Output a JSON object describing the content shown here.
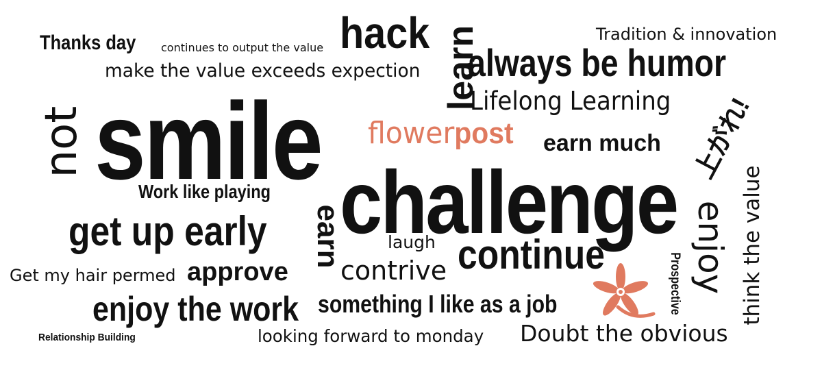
{
  "words": {
    "thanks_day": "Thanks day",
    "continues_output": "continues to output the value",
    "hack": "hack",
    "tradition": "Tradition & innovation",
    "make_value": "make the value exceeds expection",
    "learn": "learn",
    "always_humor": "always be humor",
    "lifelong": "Lifelong Learning",
    "not": "not",
    "smile": "smile",
    "flower": "flower",
    "post": "post",
    "earn_much": "earn much",
    "agare": "上がれ!",
    "work_playing": "Work like playing",
    "challenge": "challenge",
    "earn": "earn",
    "enjoy_vert": "enjoy",
    "think_value": "think the value",
    "get_up": "get up early",
    "laugh": "laugh",
    "prospective": "Prospective",
    "continue": "continue",
    "hair": "Get my hair permed",
    "approve": "approve",
    "contrive": "contrive",
    "enjoy_work": "enjoy the work",
    "something": "something I like as a job",
    "relationship": "Relationship Building",
    "looking": "looking forward to monday",
    "doubt": "Doubt the obvious"
  },
  "colors": {
    "text": "#111111",
    "accent": "#e07a5f",
    "background": "#ffffff"
  },
  "icons": {
    "flower": "flower-icon"
  }
}
